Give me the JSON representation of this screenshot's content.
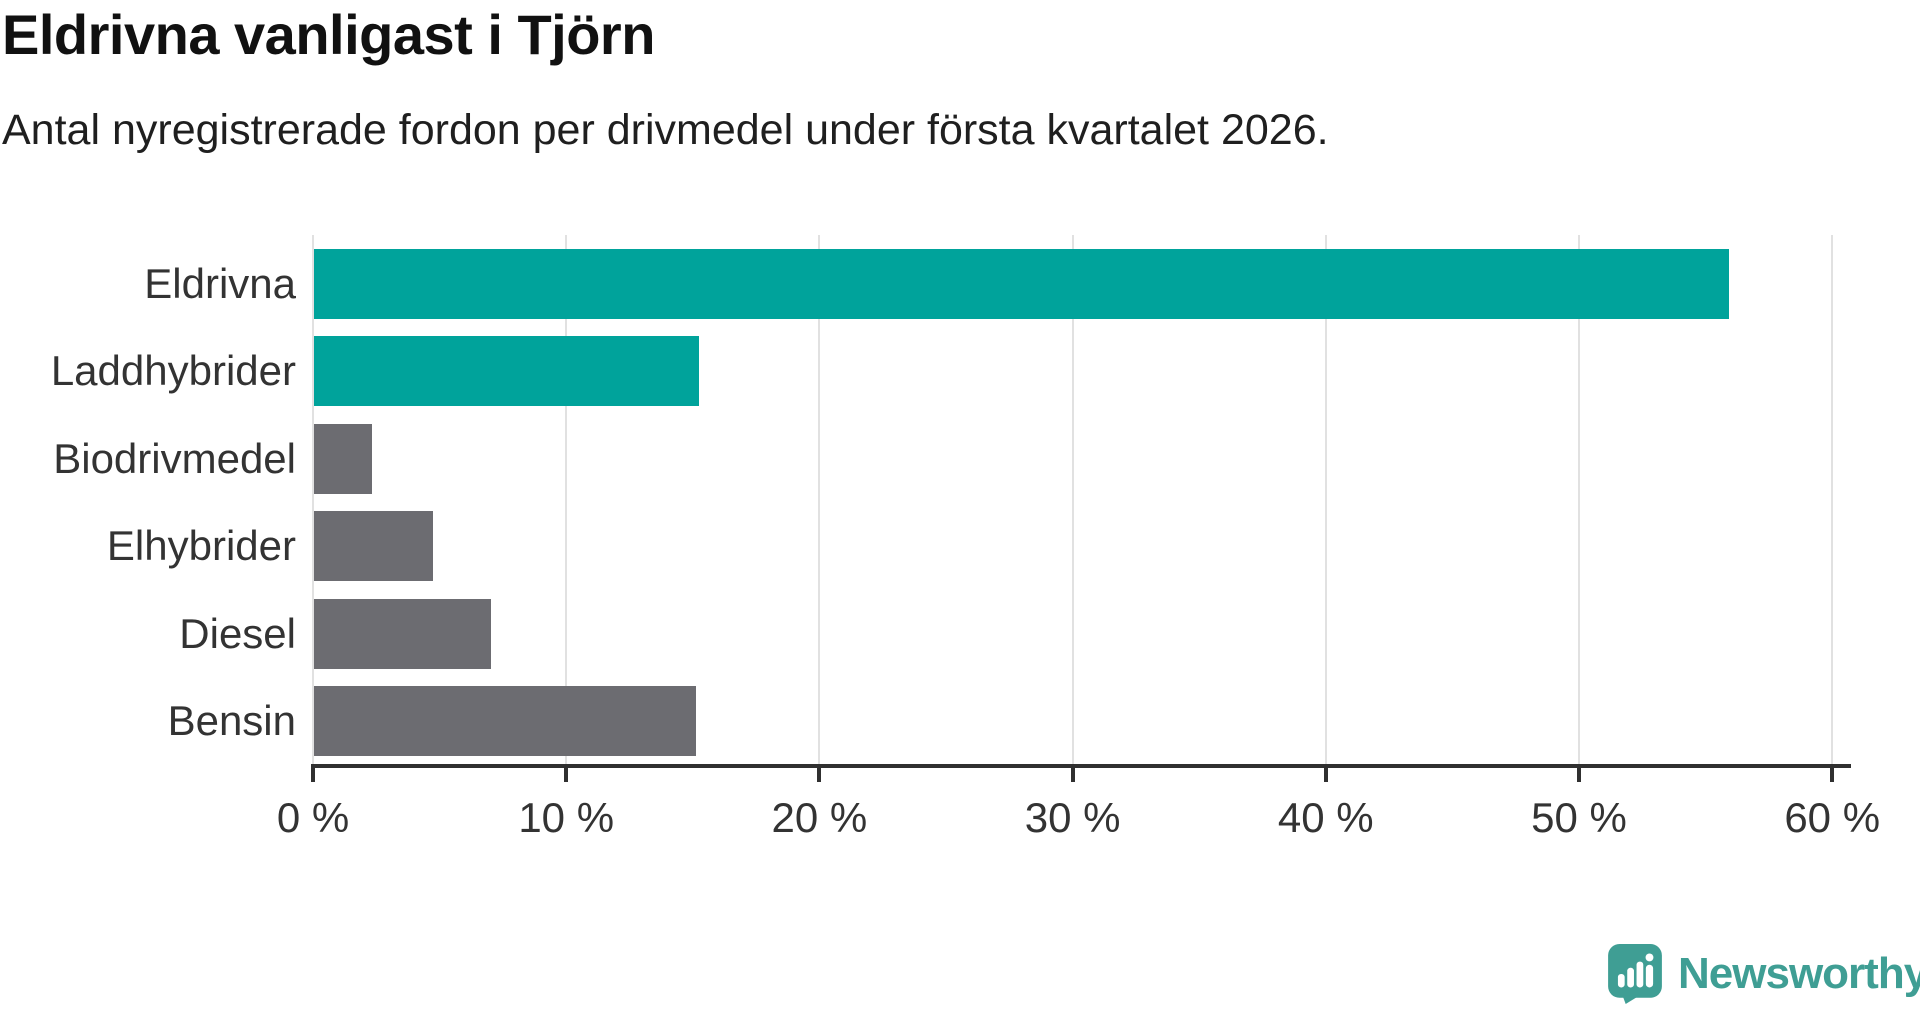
{
  "chart": {
    "title": "Eldrivna vanligast i Tjörn",
    "subtitle": "Antal nyregistrerade fordon per drivmedel under första kvartalet 2026."
  },
  "chart_data": {
    "type": "bar",
    "orientation": "horizontal",
    "title": "Eldrivna vanligast i Tjörn",
    "subtitle": "Antal nyregistrerade fordon per drivmedel under första kvartalet 2026.",
    "categories": [
      "Eldrivna",
      "Laddhybrider",
      "Biodrivmedel",
      "Elhybrider",
      "Diesel",
      "Bensin"
    ],
    "values": [
      55.9,
      15.2,
      2.3,
      4.7,
      7.0,
      15.1
    ],
    "unit": "%",
    "bar_colors": [
      "#00a39b",
      "#00a39b",
      "#6c6c71",
      "#6c6c71",
      "#6c6c71",
      "#6c6c71"
    ],
    "xlabel": "",
    "ylabel": "",
    "xlim": [
      0,
      60
    ],
    "x_ticks": [
      0,
      10,
      20,
      30,
      40,
      50,
      60
    ],
    "x_tick_labels": [
      "0 %",
      "10 %",
      "20 %",
      "30 %",
      "40 %",
      "50 %",
      "60 %"
    ],
    "grid": "vertical-light",
    "legend": "none"
  },
  "footer": {
    "brand": "Newsworthy"
  },
  "colors": {
    "teal": "#00a39b",
    "gray": "#6c6c71",
    "logo_teal": "#3f9e94",
    "axis": "#303030",
    "gridline": "#e1e1e1",
    "text_dark": "#111111",
    "text_body": "#333333"
  }
}
